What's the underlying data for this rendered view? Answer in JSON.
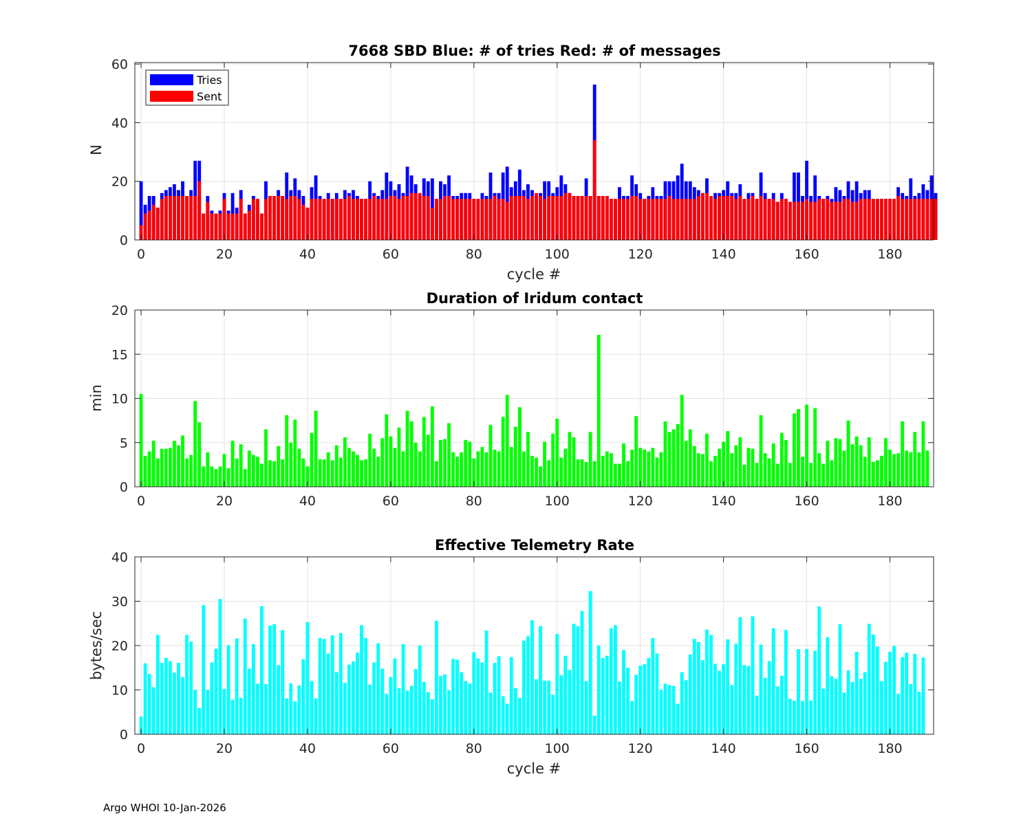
{
  "figure": {
    "footer": "Argo WHOI 10-Jan-2026"
  },
  "colors": {
    "tries": "#0000ff",
    "sent": "#ff0000",
    "duration": "#00ff00",
    "rate": "#00ffff",
    "grid": "#e3e3e3",
    "axis": "#262626"
  },
  "chart_data": [
    {
      "type": "bar",
      "stacked_overlay": true,
      "title": "7668 SBD  Blue: # of tries   Red: # of messages",
      "xlabel": "cycle #",
      "ylabel": "N",
      "xlim": [
        -1.5,
        190.5
      ],
      "ylim": [
        0,
        60.5
      ],
      "xticks": [
        0,
        20,
        40,
        60,
        80,
        100,
        120,
        140,
        160,
        180
      ],
      "yticks": [
        0,
        20,
        40,
        60
      ],
      "legend": {
        "position": "top-left",
        "entries": [
          "Tries",
          "Sent"
        ]
      },
      "x_start": 0,
      "series": [
        {
          "name": "Tries",
          "color": "#0000ff",
          "values": [
            20,
            12,
            15,
            15,
            11,
            16,
            17,
            18,
            19,
            17,
            20,
            15,
            17,
            27,
            27,
            9,
            15,
            10,
            9,
            10,
            16,
            10,
            16,
            11,
            17,
            9,
            12,
            15,
            14,
            9,
            20,
            15,
            15,
            17,
            15,
            23,
            17,
            21,
            17,
            15,
            11,
            18,
            22,
            15,
            14,
            16,
            14,
            16,
            14,
            17,
            16,
            17,
            15,
            14,
            14,
            20,
            16,
            15,
            17,
            23,
            20,
            17,
            19,
            16,
            25,
            22,
            19,
            15,
            21,
            20,
            21,
            14,
            20,
            19,
            22,
            15,
            15,
            16,
            16,
            16,
            14,
            14,
            16,
            15,
            23,
            16,
            16,
            23,
            25,
            18,
            20,
            24,
            17,
            19,
            17,
            15,
            16,
            20,
            20,
            16,
            18,
            22,
            19,
            16,
            15,
            15,
            15,
            21,
            15,
            53,
            15,
            15,
            15,
            14,
            14,
            18,
            15,
            15,
            22,
            19,
            16,
            14,
            15,
            18,
            15,
            15,
            20,
            20,
            20,
            22,
            26,
            20,
            20,
            18,
            17,
            16,
            21,
            14,
            16,
            16,
            17,
            20,
            16,
            16,
            19,
            14,
            16,
            16,
            14,
            23,
            16,
            14,
            16,
            13,
            16,
            14,
            13,
            23,
            23,
            15,
            27,
            15,
            22,
            15,
            14,
            15,
            14,
            18,
            17,
            15,
            20,
            17,
            20,
            16,
            17,
            17,
            14,
            14,
            14,
            14,
            14,
            14,
            18,
            16,
            15,
            21,
            15,
            16,
            19,
            17,
            22,
            16
          ]
        },
        {
          "name": "Sent",
          "color": "#ff0000",
          "values": [
            5,
            9,
            10,
            12,
            11,
            14,
            15,
            15,
            15,
            15,
            15,
            15,
            15,
            15,
            20,
            9,
            13,
            9,
            9,
            9,
            14,
            9,
            9,
            9,
            14,
            9,
            10,
            14,
            14,
            9,
            14,
            15,
            15,
            15,
            15,
            14,
            15,
            15,
            14,
            12,
            11,
            14,
            14,
            14,
            14,
            14,
            14,
            14,
            14,
            14,
            15,
            14,
            14,
            14,
            14,
            14,
            15,
            14,
            14,
            14,
            15,
            15,
            14,
            15,
            15,
            16,
            16,
            16,
            15,
            15,
            11,
            14,
            14,
            15,
            15,
            14,
            14,
            14,
            14,
            14,
            14,
            14,
            14,
            14,
            14,
            15,
            14,
            14,
            13,
            15,
            15,
            15,
            15,
            14,
            15,
            16,
            15,
            14,
            15,
            15,
            15,
            15,
            16,
            16,
            15,
            15,
            15,
            15,
            15,
            34,
            15,
            15,
            15,
            14,
            14,
            14,
            14,
            14,
            15,
            15,
            14,
            14,
            14,
            14,
            14,
            14,
            14,
            15,
            14,
            14,
            14,
            14,
            14,
            14,
            15,
            16,
            16,
            15,
            14,
            15,
            15,
            15,
            15,
            14,
            15,
            14,
            14,
            15,
            14,
            15,
            14,
            14,
            14,
            13,
            14,
            14,
            13,
            13,
            13,
            13,
            14,
            13,
            13,
            14,
            14,
            14,
            13,
            13,
            13,
            14,
            14,
            13,
            13,
            14,
            14,
            14,
            14,
            14,
            14,
            14,
            14,
            14,
            15,
            14,
            14,
            14,
            14,
            14,
            14,
            14,
            14,
            14
          ]
        }
      ]
    },
    {
      "type": "bar",
      "title": "Duration of Iridum contact",
      "xlabel": "",
      "ylabel": "min",
      "xlim": [
        -1.5,
        190.5
      ],
      "ylim": [
        0,
        20
      ],
      "xticks": [
        0,
        20,
        40,
        60,
        80,
        100,
        120,
        140,
        160,
        180
      ],
      "yticks": [
        0,
        5,
        10,
        15,
        20
      ],
      "x_start": 0,
      "series": [
        {
          "name": "Duration",
          "color": "#00ff00",
          "values": [
            10.5,
            3.5,
            4.0,
            5.2,
            3.2,
            4.3,
            4.3,
            4.4,
            5.2,
            4.7,
            5.8,
            3.2,
            3.6,
            9.7,
            7.3,
            2.3,
            3.9,
            2.3,
            2.0,
            2.3,
            3.7,
            2.1,
            5.2,
            3.2,
            4.8,
            2.0,
            4.1,
            3.6,
            3.4,
            2.6,
            6.5,
            3.0,
            2.9,
            4.6,
            3.1,
            8.1,
            5.0,
            7.6,
            4.3,
            3.2,
            2.3,
            6.1,
            8.6,
            3.1,
            3.1,
            3.9,
            3.0,
            4.7,
            3.3,
            5.6,
            4.4,
            4.0,
            3.6,
            3.0,
            3.1,
            6.0,
            4.3,
            3.4,
            5.5,
            8.2,
            5.7,
            4.4,
            6.7,
            4.0,
            8.6,
            7.4,
            5.0,
            4.0,
            7.9,
            5.9,
            9.1,
            2.9,
            5.3,
            5.4,
            7.2,
            3.9,
            3.4,
            3.9,
            5.3,
            5.1,
            3.2,
            4.0,
            4.5,
            3.9,
            7.0,
            4.2,
            4.0,
            7.9,
            10.4,
            4.5,
            6.8,
            9.0,
            4.0,
            6.2,
            3.5,
            3.3,
            2.3,
            5.1,
            3.0,
            6.0,
            7.7,
            3.3,
            4.3,
            6.2,
            5.6,
            3.1,
            3.1,
            2.8,
            6.2,
            2.9,
            17.2,
            3.5,
            4.0,
            3.8,
            2.6,
            2.6,
            4.9,
            2.9,
            4.2,
            8.0,
            4.4,
            4.2,
            4.0,
            4.4,
            3.3,
            3.9,
            7.4,
            6.2,
            6.5,
            7.1,
            10.4,
            5.2,
            6.5,
            4.6,
            3.8,
            3.7,
            6.0,
            2.9,
            3.5,
            4.3,
            5.1,
            6.3,
            3.8,
            4.7,
            5.6,
            2.5,
            4.4,
            4.3,
            2.7,
            8.1,
            3.8,
            3.2,
            4.9,
            2.6,
            6.1,
            5.3,
            2.7,
            8.3,
            8.8,
            3.4,
            9.3,
            2.7,
            8.9,
            3.8,
            2.6,
            5.2,
            3.0,
            5.5,
            5.4,
            4.1,
            7.5,
            4.8,
            5.7,
            4.7,
            3.4,
            5.6,
            2.8,
            3.0,
            3.5,
            5.5,
            4.2,
            3.7,
            3.8,
            7.4,
            4.1,
            3.9,
            6.2,
            3.9,
            7.4,
            4.1
          ]
        }
      ]
    },
    {
      "type": "bar",
      "title": "Effective Telemetry Rate",
      "xlabel": "cycle #",
      "ylabel": "bytes/sec",
      "xlim": [
        -1.5,
        190.5
      ],
      "ylim": [
        0,
        40
      ],
      "xticks": [
        0,
        20,
        40,
        60,
        80,
        100,
        120,
        140,
        160,
        180
      ],
      "yticks": [
        0,
        10,
        20,
        30,
        40
      ],
      "x_start": 0,
      "series": [
        {
          "name": "Rate",
          "color": "#00ffff",
          "values": [
            4,
            16,
            13.6,
            10.6,
            22.4,
            16.1,
            17.2,
            16.5,
            13.9,
            16.1,
            12.9,
            22.4,
            20.9,
            10,
            5.9,
            29.1,
            10,
            16.2,
            19.3,
            30.5,
            10.2,
            20.1,
            7.8,
            21.6,
            8.2,
            26.1,
            14.8,
            20.3,
            11.4,
            28.9,
            11.3,
            24.5,
            24.8,
            15.6,
            23.5,
            8.1,
            11.5,
            7.4,
            11,
            16.9,
            25.3,
            12,
            8.1,
            21.7,
            21.5,
            18.2,
            22.3,
            14,
            22.8,
            11.6,
            15.7,
            16.4,
            18.4,
            24.6,
            21.7,
            11.2,
            16.2,
            20.5,
            14.8,
            9.1,
            12.9,
            17.1,
            10.4,
            20.3,
            9.8,
            10.9,
            14.7,
            20,
            11.8,
            9.5,
            7.9,
            25.6,
            13.1,
            13.5,
            9.9,
            17,
            16.8,
            14,
            12,
            11.4,
            18.5,
            17.1,
            16.2,
            23.4,
            9.4,
            16.1,
            17.6,
            8.6,
            6.9,
            17.4,
            10.4,
            8.2,
            21.1,
            22.1,
            25.7,
            12.4,
            24.4,
            12.1,
            12.1,
            8.9,
            22.6,
            13.3,
            17.7,
            14.5,
            24.9,
            24.4,
            27.8,
            12,
            32.3,
            4.2,
            20,
            17.2,
            17.7,
            23.9,
            24.6,
            11.9,
            19,
            15,
            7.5,
            13.4,
            15.5,
            15.8,
            17.2,
            21.7,
            18.2,
            10,
            11.4,
            11.1,
            10.9,
            6.9,
            14,
            12.2,
            18,
            21.5,
            20.8,
            16.7,
            23.6,
            22.4,
            15.9,
            14.3,
            15.8,
            21.4,
            11.1,
            20.4,
            26.4,
            15.6,
            15.4,
            26.6,
            8.7,
            20.2,
            12.7,
            16.5,
            23.9,
            10.8,
            13.2,
            23.5,
            8,
            7.6,
            19.2,
            7.5,
            19.2,
            7.6,
            18.8,
            28.8,
            10.3,
            21.9,
            13.1,
            12.5,
            24.8,
            9.4,
            14.4,
            11.8,
            18.6,
            12.5,
            14,
            24.9,
            22.5,
            19.8,
            12,
            16.3,
            18.6,
            19.9,
            9.1,
            17.4,
            18.4,
            11.3,
            18.1,
            9.6,
            17.3
          ]
        }
      ]
    }
  ]
}
